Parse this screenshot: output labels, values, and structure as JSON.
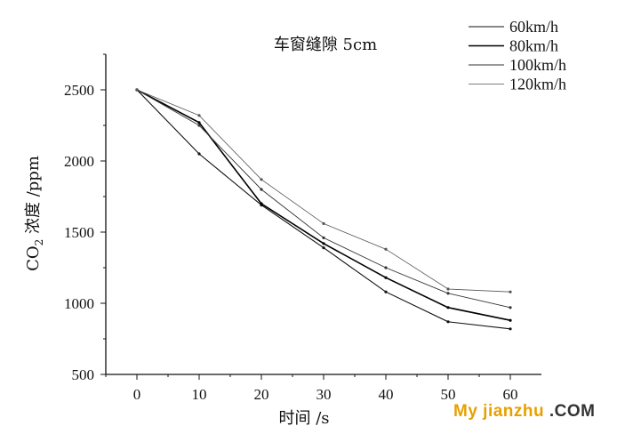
{
  "chart_data": {
    "type": "line",
    "title": "车窗缝隙 5cm",
    "xlabel": "时间 /s",
    "ylabel_main": "CO",
    "ylabel_sub": "2",
    "ylabel_rest": " 浓度 /ppm",
    "xlim": [
      -5,
      65
    ],
    "ylim": [
      500,
      2750
    ],
    "x_ticks": [
      0,
      10,
      20,
      30,
      40,
      50,
      60
    ],
    "y_ticks": [
      500,
      1000,
      1500,
      2000,
      2500
    ],
    "legend_position": "top-right",
    "series": [
      {
        "name": "60km/h",
        "color": "#111111",
        "x": [
          0,
          10,
          20,
          30,
          40,
          50,
          60
        ],
        "y": [
          2500,
          2050,
          1690,
          1390,
          1080,
          870,
          820
        ]
      },
      {
        "name": "80km/h",
        "color": "#000000",
        "x": [
          0,
          10,
          20,
          30,
          40,
          50,
          60
        ],
        "y": [
          2500,
          2270,
          1700,
          1420,
          1180,
          970,
          880
        ]
      },
      {
        "name": "100km/h",
        "color": "#333333",
        "x": [
          0,
          10,
          20,
          30,
          40,
          50,
          60
        ],
        "y": [
          2500,
          2250,
          1800,
          1460,
          1250,
          1070,
          970
        ]
      },
      {
        "name": "120km/h",
        "color": "#555555",
        "x": [
          0,
          10,
          20,
          30,
          40,
          50,
          60
        ],
        "y": [
          2500,
          2320,
          1870,
          1560,
          1380,
          1100,
          1080
        ]
      }
    ]
  },
  "watermark": {
    "part1": "My jianzhu",
    "part2": ".COM"
  }
}
